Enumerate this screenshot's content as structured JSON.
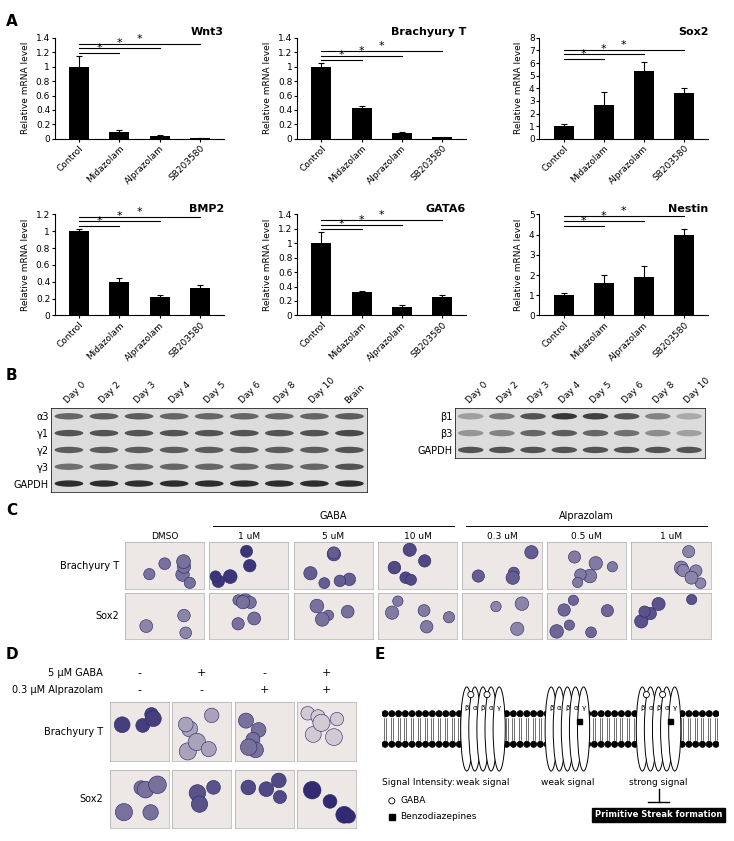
{
  "panel_labels": [
    "A",
    "B",
    "C",
    "D",
    "E"
  ],
  "chart_data": [
    {
      "type": "bar",
      "title": "Wnt3",
      "y_label": "Relative mRNA level",
      "categories": [
        "Control",
        "Midazolam",
        "Alprazolam",
        "SB203580"
      ],
      "values": [
        1,
        0.1,
        0.04,
        0.01
      ],
      "errors": [
        0.15,
        0.02,
        0.01,
        0.003
      ],
      "color": "#000000",
      "ylim": [
        0,
        1.4
      ],
      "yticks": [
        0,
        0.2,
        0.4,
        0.6,
        0.8,
        1,
        1.2,
        1.4
      ],
      "annotations": [
        {
          "text": "*",
          "between": [
            "Control",
            "Midazolam"
          ]
        },
        {
          "text": "*",
          "between": [
            "Control",
            "Alprazolam"
          ]
        },
        {
          "text": "*",
          "between": [
            "Control",
            "SB203580"
          ]
        }
      ]
    },
    {
      "type": "bar",
      "title": "Brachyury T",
      "y_label": "Relative mRNA level",
      "categories": [
        "Control",
        "Midazolam",
        "Alprazolam",
        "SB203580"
      ],
      "values": [
        1,
        0.42,
        0.08,
        0.02
      ],
      "errors": [
        0.05,
        0.03,
        0.01,
        0.005
      ],
      "color": "#000000",
      "ylim": [
        0,
        1.4
      ],
      "yticks": [
        0,
        0.2,
        0.4,
        0.6,
        0.8,
        1,
        1.2,
        1.4
      ],
      "annotations": [
        {
          "text": "*",
          "between": [
            "Control",
            "Midazolam"
          ]
        },
        {
          "text": "*",
          "between": [
            "Control",
            "Alprazolam"
          ]
        },
        {
          "text": "*",
          "between": [
            "Control",
            "SB203580"
          ]
        }
      ]
    },
    {
      "type": "bar",
      "title": "Sox2",
      "y_label": "Relative mRNA level",
      "categories": [
        "Control",
        "Midazolam",
        "Alprazolam",
        "SB203580"
      ],
      "values": [
        1,
        2.7,
        5.4,
        3.6
      ],
      "errors": [
        0.2,
        1.0,
        0.7,
        0.45
      ],
      "color": "#000000",
      "ylim": [
        0,
        8
      ],
      "yticks": [
        0,
        1,
        2,
        3,
        4,
        5,
        6,
        7,
        8
      ],
      "annotations": [
        {
          "text": "*",
          "between": [
            "Control",
            "Midazolam"
          ]
        },
        {
          "text": "*",
          "between": [
            "Control",
            "Alprazolam"
          ]
        },
        {
          "text": "*",
          "between": [
            "Control",
            "SB203580"
          ]
        }
      ]
    },
    {
      "type": "bar",
      "title": "BMP2",
      "y_label": "Relative mRNA level",
      "categories": [
        "Control",
        "Midazolam",
        "Alprazolam",
        "SB203580"
      ],
      "values": [
        1,
        0.4,
        0.22,
        0.33
      ],
      "errors": [
        0.03,
        0.04,
        0.02,
        0.03
      ],
      "color": "#000000",
      "ylim": [
        0,
        1.2
      ],
      "yticks": [
        0,
        0.2,
        0.4,
        0.6,
        0.8,
        1,
        1.2
      ],
      "annotations": [
        {
          "text": "*",
          "between": [
            "Control",
            "Midazolam"
          ]
        },
        {
          "text": "*",
          "between": [
            "Control",
            "Alprazolam"
          ]
        },
        {
          "text": "*",
          "between": [
            "Control",
            "SB203580"
          ]
        }
      ]
    },
    {
      "type": "bar",
      "title": "GATA6",
      "y_label": "Relative mRNA level",
      "categories": [
        "Control",
        "Midazolam",
        "Alprazolam",
        "SB203580"
      ],
      "values": [
        1,
        0.32,
        0.11,
        0.25
      ],
      "errors": [
        0.15,
        0.02,
        0.04,
        0.03
      ],
      "color": "#000000",
      "ylim": [
        0,
        1.4
      ],
      "yticks": [
        0,
        0.2,
        0.4,
        0.6,
        0.8,
        1,
        1.2,
        1.4
      ],
      "annotations": [
        {
          "text": "*",
          "between": [
            "Control",
            "Midazolam"
          ]
        },
        {
          "text": "*",
          "between": [
            "Control",
            "Alprazolam"
          ]
        },
        {
          "text": "*",
          "between": [
            "Control",
            "SB203580"
          ]
        }
      ]
    },
    {
      "type": "bar",
      "title": "Nestin",
      "y_label": "Relative mRNA level",
      "categories": [
        "Control",
        "Midazolam",
        "Alprazolam",
        "SB203580"
      ],
      "values": [
        1,
        1.6,
        1.9,
        4.0
      ],
      "errors": [
        0.1,
        0.4,
        0.55,
        0.3
      ],
      "color": "#000000",
      "ylim": [
        0,
        5
      ],
      "yticks": [
        0,
        1,
        2,
        3,
        4,
        5
      ],
      "annotations": [
        {
          "text": "*",
          "between": [
            "Control",
            "Midazolam"
          ]
        },
        {
          "text": "*",
          "between": [
            "Control",
            "Alprazolam"
          ]
        },
        {
          "text": "*",
          "between": [
            "Control",
            "SB203580"
          ]
        }
      ]
    }
  ],
  "gels": [
    {
      "lanes": [
        "Day 0",
        "Day 2",
        "Day 3",
        "Day 4",
        "Day 5",
        "Day 6",
        "Day 8",
        "Day 10",
        "Brain"
      ],
      "rows": [
        {
          "label": "α3",
          "intensity": [
            0.6,
            0.65,
            0.65,
            0.6,
            0.6,
            0.6,
            0.6,
            0.6,
            0.65
          ]
        },
        {
          "label": "γ1",
          "intensity": [
            0.7,
            0.7,
            0.7,
            0.7,
            0.7,
            0.7,
            0.7,
            0.7,
            0.75
          ]
        },
        {
          "label": "γ2",
          "intensity": [
            0.65,
            0.65,
            0.65,
            0.65,
            0.65,
            0.65,
            0.65,
            0.65,
            0.7
          ]
        },
        {
          "label": "γ3",
          "intensity": [
            0.55,
            0.6,
            0.6,
            0.6,
            0.6,
            0.6,
            0.6,
            0.6,
            0.7
          ]
        },
        {
          "label": "GAPDH",
          "intensity": [
            0.9,
            0.9,
            0.9,
            0.9,
            0.9,
            0.9,
            0.9,
            0.9,
            0.9
          ]
        }
      ]
    },
    {
      "lanes": [
        "Day 0",
        "Day 2",
        "Day 3",
        "Day 4",
        "Day 5",
        "Day 6",
        "Day 8",
        "Day 10"
      ],
      "rows": [
        {
          "label": "β1",
          "intensity": [
            0.3,
            0.5,
            0.7,
            0.85,
            0.8,
            0.7,
            0.45,
            0.25
          ]
        },
        {
          "label": "β3",
          "intensity": [
            0.35,
            0.45,
            0.6,
            0.65,
            0.6,
            0.55,
            0.4,
            0.3
          ]
        },
        {
          "label": "GAPDH",
          "intensity": [
            0.7,
            0.7,
            0.7,
            0.7,
            0.7,
            0.7,
            0.7,
            0.7
          ]
        }
      ]
    }
  ],
  "dose_staining": {
    "columns": [
      {
        "group": null,
        "label": "DMSO"
      },
      {
        "group": "GABA",
        "label": "1 uM"
      },
      {
        "group": "GABA",
        "label": "5 uM"
      },
      {
        "group": "GABA",
        "label": "10 uM"
      },
      {
        "group": "Alprazolam",
        "label": "0.3 uM"
      },
      {
        "group": "Alprazolam",
        "label": "0.5 uM"
      },
      {
        "group": "Alprazolam",
        "label": "1 uM"
      }
    ],
    "rows": [
      {
        "label": "Brachyury T",
        "stain": [
          0.6,
          0.9,
          0.7,
          0.8,
          0.7,
          0.55,
          0.5
        ]
      },
      {
        "label": "Sox2",
        "stain": [
          0.5,
          0.6,
          0.6,
          0.55,
          0.5,
          0.65,
          0.75
        ]
      }
    ]
  },
  "combination_staining": {
    "treatments": [
      {
        "label": "5 μM GABA",
        "marks": [
          "-",
          "+",
          "-",
          "+"
        ]
      },
      {
        "label": "0.3 μM Alprazolam",
        "marks": [
          "-",
          "-",
          "+",
          "+"
        ]
      }
    ],
    "rows": [
      {
        "label": "Brachyury T",
        "stain": [
          0.85,
          0.35,
          0.6,
          0.15
        ]
      },
      {
        "label": "Sox2",
        "stain": [
          0.6,
          0.75,
          0.8,
          0.95
        ]
      }
    ]
  },
  "schematic": {
    "signal_label": "Signal Intensity:",
    "receptors": [
      {
        "subunits": [
          "β",
          "α",
          "β",
          "α",
          "γ"
        ],
        "ligands": [
          "GABA",
          "GABA"
        ],
        "signal": "weak signal"
      },
      {
        "subunits": [
          "β",
          "α",
          "β",
          "α",
          "γ"
        ],
        "ligands": [
          "Benzodiazepines"
        ],
        "signal": "weak signal"
      },
      {
        "subunits": [
          "β",
          "α",
          "β",
          "α",
          "γ"
        ],
        "ligands": [
          "GABA",
          "GABA",
          "Benzodiazepines"
        ],
        "signal": "strong signal",
        "inhibits": "Primitive Streak formation"
      }
    ],
    "key": [
      {
        "name": "GABA",
        "marker": "circle"
      },
      {
        "name": "Benzodiazepines",
        "marker": "square"
      }
    ]
  }
}
